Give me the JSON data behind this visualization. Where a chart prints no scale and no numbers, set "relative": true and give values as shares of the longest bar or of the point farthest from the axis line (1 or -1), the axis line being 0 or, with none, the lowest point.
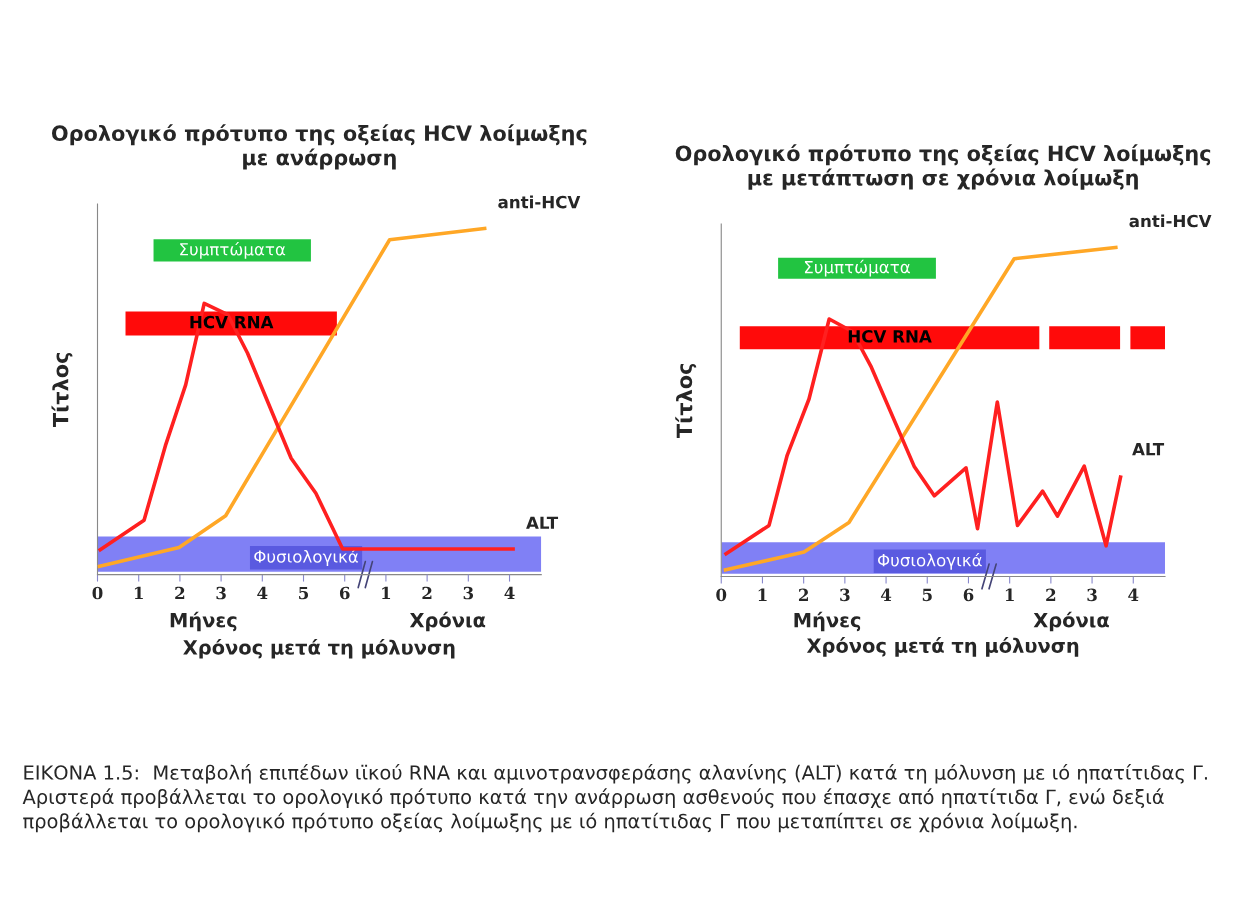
{
  "chart_data": [
    {
      "type": "line",
      "title": "Ορολογικό πρότυπο της οξείας HCV λοίμωξης\nμε ανάρρωση",
      "xlabel": "Μήνες",
      "x2label": "Χρόνια",
      "ylabel": "Τίτλος",
      "relative": true,
      "xlim": [
        0,
        10.77
      ],
      "xticks": [
        0,
        1,
        2,
        3,
        4,
        5,
        6
      ],
      "x2lim": [
        -6,
        4.77
      ],
      "x2ticks": [
        1,
        2,
        3,
        4
      ],
      "series": [
        {
          "name": "anti-HCV",
          "color": "#ffa726",
          "x": [
            0.0,
            1.98,
            3.11,
            7.09,
            9.44
          ],
          "values": [
            0.023,
            0.078,
            0.17,
            0.967,
            1.0
          ]
        },
        {
          "name": "ALT",
          "color": "#ff2020",
          "x": [
            0.03,
            1.13,
            1.65,
            2.14,
            2.59,
            3.16,
            3.64,
            4.7,
            5.3,
            5.95,
            10.13
          ],
          "values": [
            0.069,
            0.157,
            0.373,
            0.548,
            0.783,
            0.751,
            0.64,
            0.336,
            0.235,
            0.074,
            0.074
          ]
        }
      ],
      "bands": [
        {
          "axis": "x",
          "from": 1.36,
          "to": 5.18,
          "label": "Συμπτώματα",
          "color": "#22c441"
        },
        {
          "axis": "x",
          "from": 0.68,
          "to": 5.81,
          "label": "HCV RNA",
          "color": "#ff0a0a"
        },
        {
          "axis": "y",
          "from": 0.008,
          "to": 0.11,
          "label": "Φυσιολογικά",
          "color": "#8080f5"
        }
      ],
      "annotations": [
        "Χρόνος μετά τη μόλυνση"
      ]
    },
    {
      "type": "line",
      "title": "Ορολογικό πρότυπο της οξείας HCV λοίμωξης\nμε μετάπτωση σε χρόνια λοίμωξη",
      "xlabel": "Μήνες",
      "x2label": "Χρόνια",
      "ylabel": "Τίτλος",
      "relative": true,
      "xlim": [
        0,
        10.77
      ],
      "xticks": [
        0,
        1,
        2,
        3,
        4,
        5,
        6
      ],
      "x2lim": [
        -6,
        4.77
      ],
      "x2ticks": [
        1,
        2,
        3,
        4
      ],
      "series": [
        {
          "name": "anti-HCV",
          "color": "#ffa726",
          "x": [
            0.06,
            2.01,
            3.1,
            7.11,
            9.62
          ],
          "values": [
            0.019,
            0.074,
            0.164,
            0.965,
            1.0
          ]
        },
        {
          "name": "ALT",
          "color": "#ff2020",
          "x": [
            0.08,
            1.16,
            1.6,
            2.13,
            2.62,
            3.18,
            3.63,
            4.68,
            5.17,
            5.94,
            6.22,
            6.7,
            7.19,
            7.8,
            8.16,
            8.81,
            9.34,
            9.7
          ],
          "values": [
            0.066,
            0.155,
            0.368,
            0.539,
            0.782,
            0.744,
            0.639,
            0.335,
            0.245,
            0.33,
            0.145,
            0.53,
            0.155,
            0.259,
            0.183,
            0.335,
            0.093,
            0.307
          ]
        }
      ],
      "bands": [
        {
          "axis": "x",
          "from": 1.38,
          "to": 5.21,
          "label": "Συμπτώματα",
          "color": "#22c441"
        },
        {
          "axis": "x",
          "from": 0.45,
          "to": 7.72,
          "label": "HCV RNA",
          "color": "#ff0a0a"
        },
        {
          "axis": "x",
          "from": 7.96,
          "to": 9.68,
          "label": null,
          "color": "#ff0a0a"
        },
        {
          "axis": "x",
          "from": 9.93,
          "to": 10.77,
          "label": null,
          "color": "#ff0a0a"
        },
        {
          "axis": "y",
          "from": 0.008,
          "to": 0.104,
          "label": "Φυσιολογικά",
          "color": "#8080f5"
        }
      ],
      "annotations": [
        "Χρόνος μετά τη μόλυνση",
        "ΕΙΚΟΝΑ 1.5:  Μεταβολή επιπέδων ιϊκού RNA και αμινοτρανσφεράσης αλανίνης (ALT) κατά τη μόλυνση με ιό ηπατίτιδας Γ. Αριστερά προβάλλεται το ορολογικό πρότυπο κατά την ανάρρωση ασθενούς που έπασχε από ηπατίτιδα Γ, ενώ δεξιά προβάλλεται το ορολογικό πρότυπο οξείας λοίμωξης με ιό ηπατίτιδας Γ που μεταπίπτει σε χρόνια λοίμωξη."
      ]
    }
  ]
}
